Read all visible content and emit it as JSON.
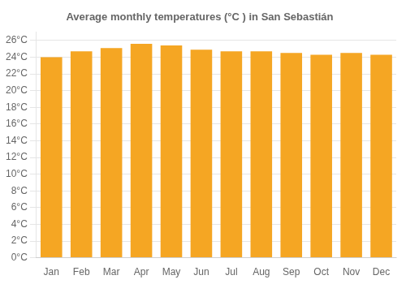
{
  "chart_data": {
    "type": "bar",
    "title": "Average monthly temperatures (°C ) in San Sebastián",
    "categories": [
      "Jan",
      "Feb",
      "Mar",
      "Apr",
      "May",
      "Jun",
      "Jul",
      "Aug",
      "Sep",
      "Oct",
      "Nov",
      "Dec"
    ],
    "values": [
      24.0,
      24.7,
      25.1,
      25.6,
      25.4,
      24.9,
      24.7,
      24.7,
      24.5,
      24.3,
      24.5,
      24.3
    ],
    "color": "#F5A623",
    "ylim": [
      0,
      27
    ],
    "yticks": [
      {
        "value": 0,
        "label": "0°C"
      },
      {
        "value": 2,
        "label": "2°C"
      },
      {
        "value": 4,
        "label": "4°C"
      },
      {
        "value": 6,
        "label": "6°C"
      },
      {
        "value": 8,
        "label": "8°C"
      },
      {
        "value": 10,
        "label": "10°C"
      },
      {
        "value": 12,
        "label": "12°C"
      },
      {
        "value": 14,
        "label": "14°C"
      },
      {
        "value": 16,
        "label": "16°C"
      },
      {
        "value": 18,
        "label": "18°C"
      },
      {
        "value": 20,
        "label": "20°C"
      },
      {
        "value": 22,
        "label": "22°C"
      },
      {
        "value": 24,
        "label": "24°C"
      },
      {
        "value": 26,
        "label": "26°C"
      }
    ],
    "grid": true
  }
}
